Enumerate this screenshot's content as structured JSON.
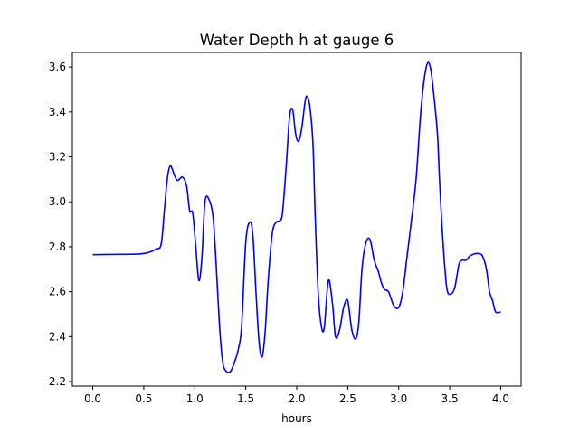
{
  "chart_data": {
    "type": "line",
    "title": "Water Depth h at gauge 6",
    "xlabel": "hours",
    "ylabel": "",
    "xlim": [
      -0.2,
      4.2
    ],
    "ylim": [
      2.18,
      3.665
    ],
    "xticks": [
      0.0,
      0.5,
      1.0,
      1.5,
      2.0,
      2.5,
      3.0,
      3.5,
      4.0
    ],
    "xtick_labels": [
      "0.0",
      "0.5",
      "1.0",
      "1.5",
      "2.0",
      "2.5",
      "3.0",
      "3.5",
      "4.0"
    ],
    "yticks": [
      2.2,
      2.4,
      2.6,
      2.8,
      3.0,
      3.2,
      3.4,
      3.6
    ],
    "ytick_labels": [
      "2.2",
      "2.4",
      "2.6",
      "2.8",
      "3.0",
      "3.2",
      "3.4",
      "3.6"
    ],
    "grid": false,
    "series": [
      {
        "color": "#0000ff",
        "x": [
          0.0,
          0.2,
          0.45,
          0.55,
          0.62,
          0.67,
          0.7,
          0.73,
          0.76,
          0.8,
          0.83,
          0.88,
          0.92,
          0.95,
          0.98,
          1.01,
          1.04,
          1.07,
          1.1,
          1.14,
          1.18,
          1.21,
          1.24,
          1.27,
          1.3,
          1.35,
          1.4,
          1.43,
          1.46,
          1.5,
          1.54,
          1.57,
          1.6,
          1.63,
          1.66,
          1.69,
          1.72,
          1.76,
          1.8,
          1.83,
          1.86,
          1.9,
          1.93,
          1.96,
          1.99,
          2.02,
          2.05,
          2.08,
          2.1,
          2.13,
          2.16,
          2.18,
          2.21,
          2.24,
          2.27,
          2.31,
          2.35,
          2.38,
          2.42,
          2.46,
          2.5,
          2.54,
          2.58,
          2.61,
          2.64,
          2.68,
          2.72,
          2.76,
          2.8,
          2.83,
          2.86,
          2.9,
          2.95,
          3.0,
          3.04,
          3.08,
          3.12,
          3.17,
          3.22,
          3.27,
          3.31,
          3.35,
          3.38,
          3.4,
          3.43,
          3.47,
          3.51,
          3.55,
          3.59,
          3.62,
          3.66,
          3.7,
          3.74,
          3.78,
          3.82,
          3.86,
          3.89,
          3.92,
          3.95,
          4.0
        ],
        "y": [
          2.765,
          2.766,
          2.768,
          2.775,
          2.79,
          2.81,
          2.95,
          3.1,
          3.16,
          3.12,
          3.095,
          3.11,
          3.07,
          2.96,
          2.95,
          2.8,
          2.65,
          2.75,
          3.0,
          3.01,
          2.93,
          2.72,
          2.47,
          2.3,
          2.25,
          2.245,
          2.3,
          2.35,
          2.45,
          2.82,
          2.91,
          2.85,
          2.6,
          2.38,
          2.31,
          2.42,
          2.65,
          2.86,
          2.91,
          2.915,
          2.95,
          3.18,
          3.38,
          3.41,
          3.3,
          3.27,
          3.33,
          3.44,
          3.47,
          3.42,
          3.25,
          2.95,
          2.6,
          2.45,
          2.44,
          2.65,
          2.55,
          2.4,
          2.43,
          2.53,
          2.56,
          2.43,
          2.39,
          2.47,
          2.7,
          2.82,
          2.83,
          2.74,
          2.69,
          2.64,
          2.61,
          2.6,
          2.54,
          2.53,
          2.6,
          2.75,
          2.9,
          3.1,
          3.42,
          3.6,
          3.6,
          3.45,
          3.3,
          3.1,
          2.85,
          2.62,
          2.59,
          2.62,
          2.72,
          2.74,
          2.74,
          2.76,
          2.768,
          2.77,
          2.76,
          2.7,
          2.6,
          2.56,
          2.51,
          2.51
        ]
      }
    ]
  }
}
